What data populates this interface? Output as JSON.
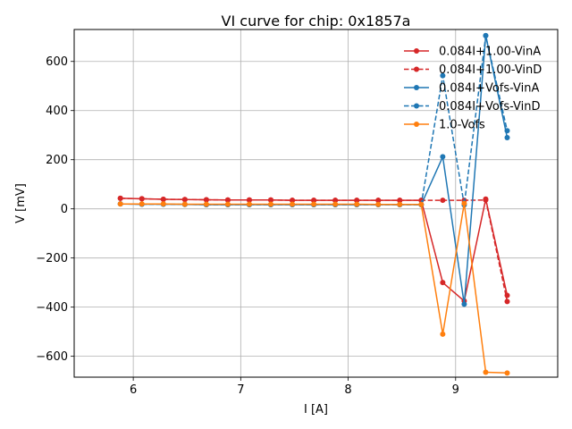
{
  "chart_data": {
    "type": "line",
    "title": "VI curve for chip: 0x1857a",
    "xlabel": "I [A]",
    "ylabel": "V [mV]",
    "xlim": [
      5.45,
      9.95
    ],
    "ylim": [
      -685,
      730
    ],
    "xticks": [
      6,
      7,
      8,
      9
    ],
    "yticks": [
      -600,
      -400,
      -200,
      0,
      200,
      400,
      600
    ],
    "grid": true,
    "legend_position": "top-right",
    "x": [
      5.88,
      6.08,
      6.28,
      6.48,
      6.68,
      6.88,
      7.08,
      7.28,
      7.48,
      7.68,
      7.88,
      8.08,
      8.28,
      8.48,
      8.68,
      8.88,
      9.08,
      9.28,
      9.48
    ],
    "series": [
      {
        "name": "0.084I+1.00-VinA",
        "color": "#d62728",
        "dash": false,
        "values": [
          43,
          41,
          39,
          38,
          37,
          36,
          36,
          36,
          35,
          35,
          35,
          35,
          35,
          35,
          35,
          -300,
          -375,
          40,
          -352
        ]
      },
      {
        "name": "0.084I+1.00-VinD",
        "color": "#d62728",
        "dash": true,
        "values": [
          43,
          41,
          39,
          38,
          37,
          36,
          36,
          36,
          35,
          35,
          35,
          35,
          35,
          35,
          35,
          35,
          35,
          36,
          -377
        ]
      },
      {
        "name": "0.084I+Vofs-VinA",
        "color": "#1f77b4",
        "dash": false,
        "values": [
          20,
          19,
          19,
          18,
          17,
          17,
          17,
          17,
          17,
          17,
          17,
          17,
          17,
          17,
          17,
          212,
          -388,
          705,
          290
        ]
      },
      {
        "name": "0.084I+Vofs-VinD",
        "color": "#1f77b4",
        "dash": true,
        "values": [
          20,
          19,
          19,
          18,
          17,
          17,
          17,
          17,
          17,
          17,
          17,
          17,
          17,
          17,
          17,
          542,
          16,
          705,
          318
        ]
      },
      {
        "name": "1.0-Vofs",
        "color": "#ff7f0e",
        "dash": false,
        "values": [
          20,
          20,
          20,
          19,
          19,
          19,
          19,
          19,
          19,
          19,
          19,
          19,
          18,
          18,
          18,
          -510,
          22,
          -665,
          -668
        ]
      }
    ]
  }
}
